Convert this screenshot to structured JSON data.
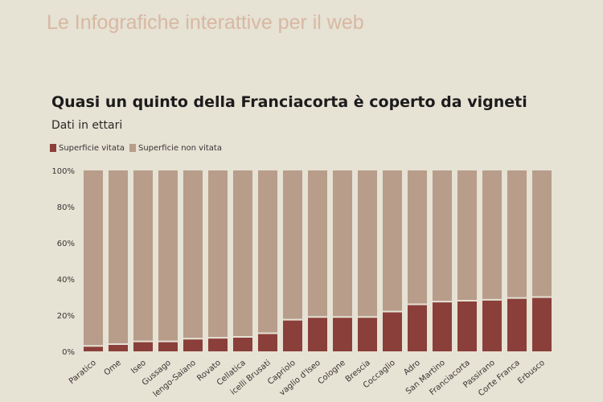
{
  "header": {
    "text": "Le Infografiche interattive per il web"
  },
  "chart_data": {
    "type": "bar",
    "stacked": true,
    "title": "Quasi un quinto della Franciacorta è coperto da vigneti",
    "subtitle": "Dati in ettari",
    "legend_position": "top-left",
    "categories": [
      "Paratico",
      "Ome",
      "Iseo",
      "Gussago",
      "lengo-Saiano",
      "Rovato",
      "Cellatica",
      "icelli Brusati",
      "Capriolo",
      "vaglio d'Iseo",
      "Cologne",
      "Brescia",
      "Coccaglio",
      "Adro",
      "San Martino",
      "Franciacorta",
      "Passirano",
      "Corte Franca",
      "Erbusco"
    ],
    "series": [
      {
        "name": "Superficie vitata",
        "color": "#8b3f3a",
        "values": [
          3,
          4,
          5.5,
          5.5,
          7,
          7.5,
          8,
          10,
          17.5,
          19,
          19,
          19,
          22,
          26,
          27.5,
          28,
          28.5,
          29.5,
          30
        ]
      },
      {
        "name": "Superficie non vitata",
        "color": "#b89d8b",
        "values": [
          97,
          96,
          94.5,
          94.5,
          93,
          92.5,
          92,
          90,
          82.5,
          81,
          81,
          81,
          78,
          74,
          72.5,
          72,
          71.5,
          70.5,
          70
        ]
      }
    ],
    "ylim": [
      0,
      100
    ],
    "yticks": [
      "0%",
      "20%",
      "40%",
      "60%",
      "80%",
      "100%"
    ],
    "grid": false
  }
}
